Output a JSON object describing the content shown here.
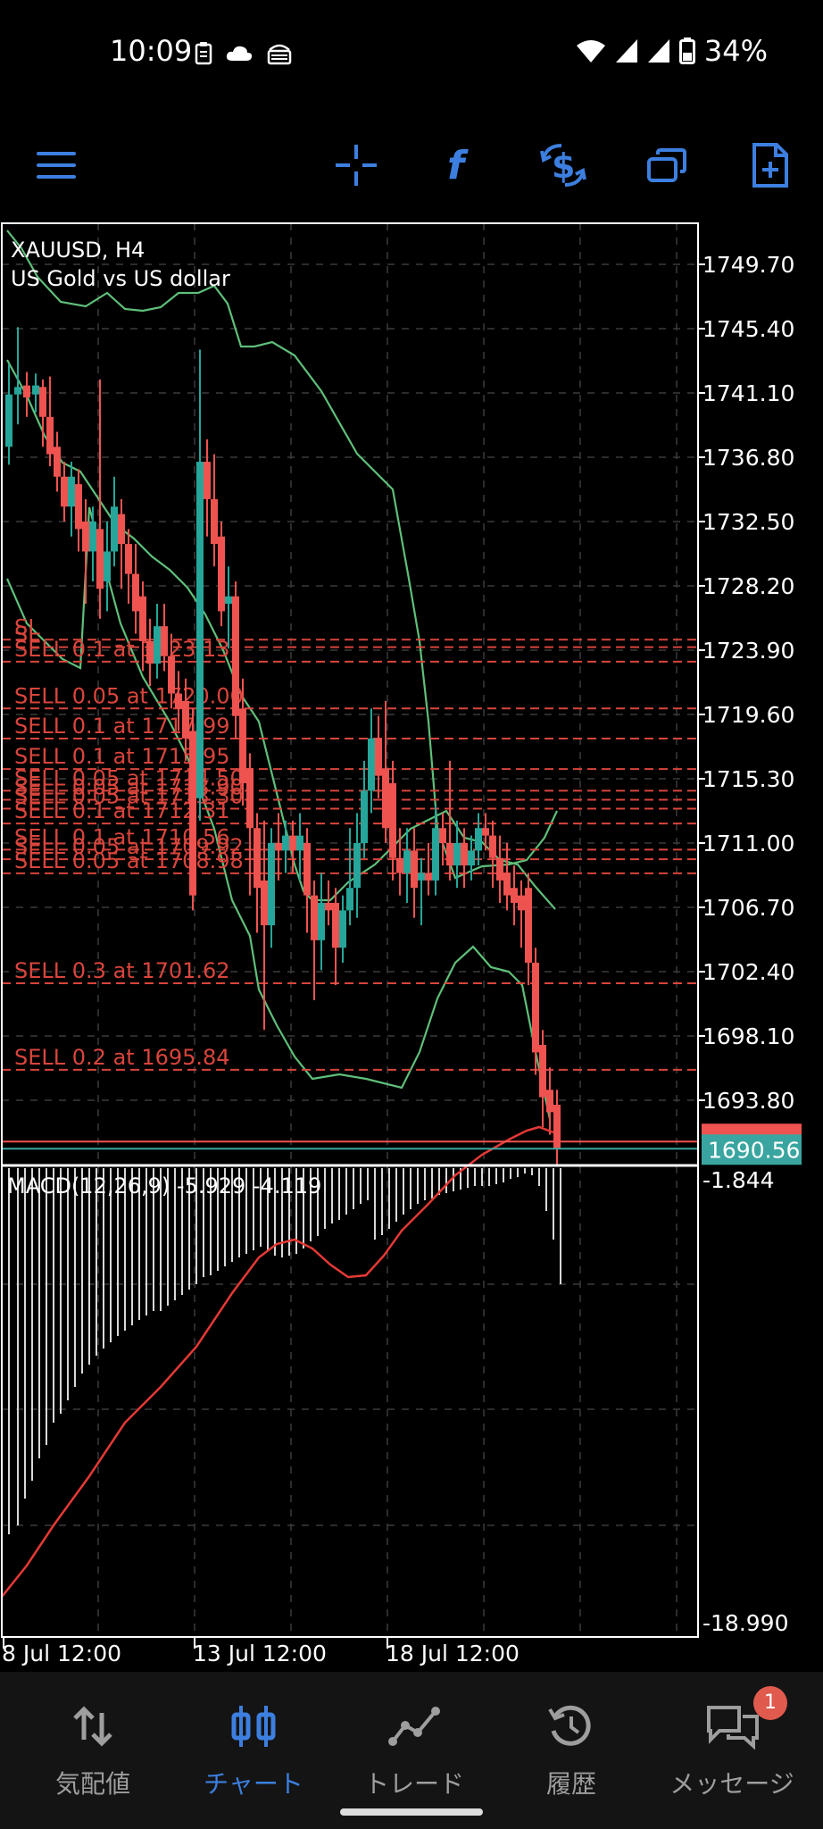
{
  "status": {
    "time": "10:09",
    "battery": "34%"
  },
  "chart": {
    "symbol": "XAUUSD, H4",
    "description": "US Gold vs US dollar",
    "indicator_label": "MACD(12,26,9) -5.929 -4.119",
    "price_axis": [
      "1749.70",
      "1745.40",
      "1741.10",
      "1736.80",
      "1732.50",
      "1728.20",
      "1723.90",
      "1719.60",
      "1715.30",
      "1711.00",
      "1706.70",
      "1702.40",
      "1698.10",
      "1693.80"
    ],
    "current_price": "1690.56",
    "macd_axis_top": "-1.844",
    "macd_axis_bottom": "-18.990",
    "time_labels": [
      "8 Jul 12:00",
      "13 Jul 12:00",
      "18 Jul 12:00"
    ],
    "orders": [
      {
        "label": "SL",
        "price": 1724.6
      },
      {
        "label": "SL",
        "price": 1724.1
      },
      {
        "label": "SELL 0.1 at 1723.13",
        "price": 1723.13
      },
      {
        "label": "SELL 0.05 at 1720.00",
        "price": 1720.0
      },
      {
        "label": "SELL 0.1 at 1717.99",
        "price": 1717.99
      },
      {
        "label": "SELL 0.1 at 1715.95",
        "price": 1715.95
      },
      {
        "label": "SELL 0.05 at 1714.50",
        "price": 1714.5
      },
      {
        "label": "SELL 0.05 at 1713.90",
        "price": 1713.9
      },
      {
        "label": "SELL 0.05 at 1713.30",
        "price": 1713.3
      },
      {
        "label": "SELL 0.1 at 1712.31",
        "price": 1712.31
      },
      {
        "label": "SELL 0.1 at 1710.56",
        "price": 1710.56
      },
      {
        "label": "SELL 0.05 at 1709.92",
        "price": 1709.92
      },
      {
        "label": "SELL 0.05 at 1708.98",
        "price": 1708.98
      },
      {
        "label": "SELL 0.3 at 1701.62",
        "price": 1701.62
      },
      {
        "label": "SELL 0.2 at 1695.84",
        "price": 1695.84
      }
    ],
    "colors": {
      "bull": "#26a69a",
      "bear": "#ef5350",
      "band": "#5fbf7a",
      "order": "#d9453c",
      "signal": "#e53935"
    }
  },
  "nav": {
    "items": [
      {
        "label": "気配値",
        "icon": "quotes-icon"
      },
      {
        "label": "チャート",
        "icon": "chart-icon"
      },
      {
        "label": "トレード",
        "icon": "trade-icon"
      },
      {
        "label": "履歴",
        "icon": "history-icon"
      },
      {
        "label": "メッセージ",
        "icon": "messages-icon"
      }
    ],
    "active": 1,
    "badge": "1"
  }
}
